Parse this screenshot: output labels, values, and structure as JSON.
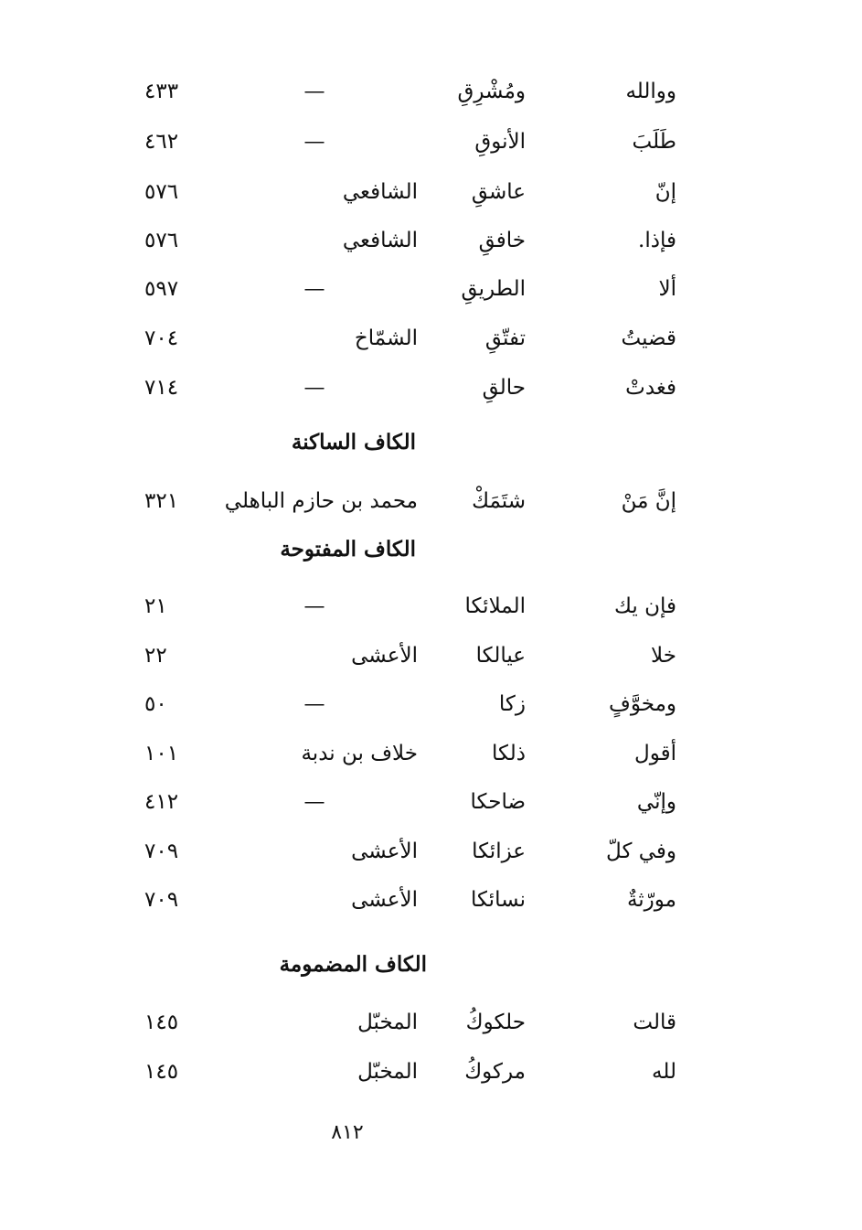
{
  "sections": [
    {
      "heading": "",
      "rows": [
        {
          "first": "ووالله",
          "rhyme": "ومُشْرِقِ",
          "poet": "—",
          "page": "٤٣٣"
        },
        {
          "first": "طَلَبَ",
          "rhyme": "الأنوقِ",
          "poet": "—",
          "page": "٤٦٢"
        },
        {
          "first": "إنّ",
          "rhyme": "عاشقِ",
          "poet": "الشافعي",
          "page": "٥٧٦"
        },
        {
          "first": "فإذا.",
          "rhyme": "خافقِ",
          "poet": "الشافعي",
          "page": "٥٧٦"
        },
        {
          "first": "ألا",
          "rhyme": "الطريقِ",
          "poet": "—",
          "page": "٥٩٧"
        },
        {
          "first": "قضيتُ",
          "rhyme": "تفتّقِ",
          "poet": "الشمّاخ",
          "page": "٧٠٤"
        },
        {
          "first": "فغدتْ",
          "rhyme": "حالقِ",
          "poet": "—",
          "page": "٧١٤"
        }
      ]
    },
    {
      "heading": "الكاف الساكنة",
      "rows": [
        {
          "first": "إنَّ مَنْ",
          "rhyme": "شتَمَكْ",
          "poet": "محمد بن حازم الباهلي",
          "page": "٣٢١"
        }
      ]
    },
    {
      "heading": "الكاف المفتوحة",
      "rows": [
        {
          "first": "فإن يك",
          "rhyme": "الملائكا",
          "poet": "—",
          "page": "٢١"
        },
        {
          "first": "خلا",
          "rhyme": "عيالكا",
          "poet": "الأعشى",
          "page": "٢٢"
        },
        {
          "first": "ومخوَّفٍ",
          "rhyme": "زكا",
          "poet": "—",
          "page": "٥٠"
        },
        {
          "first": "أقول",
          "rhyme": "ذلكا",
          "poet": "خلاف بن ندبة",
          "page": "١٠١"
        },
        {
          "first": "وإنّي",
          "rhyme": "ضاحكا",
          "poet": "—",
          "page": "٤١٢"
        },
        {
          "first": "وفي كلّ",
          "rhyme": "عزائكا",
          "poet": "الأعشى",
          "page": "٧٠٩"
        },
        {
          "first": "مورّثةٌ",
          "rhyme": "نسائكا",
          "poet": "الأعشى",
          "page": "٧٠٩"
        }
      ]
    },
    {
      "heading": "الكاف المضمومة",
      "rows": [
        {
          "first": "قالت",
          "rhyme": "حلكوكُ",
          "poet": "المخبّل",
          "page": "١٤٥"
        },
        {
          "first": "لله",
          "rhyme": "مركوكُ",
          "poet": "المخبّل",
          "page": "١٤٥"
        }
      ]
    }
  ],
  "page_number": "٨١٢"
}
